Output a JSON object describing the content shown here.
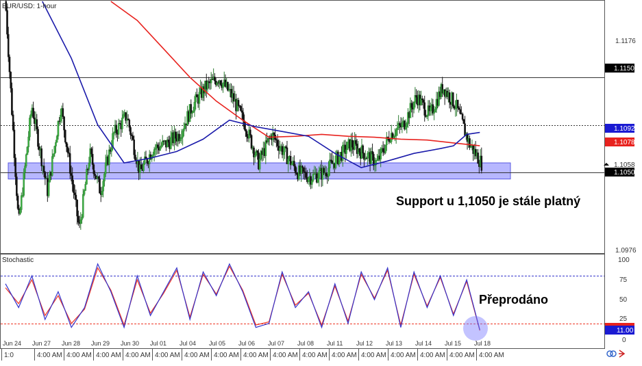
{
  "colors": {
    "bull": "#2e7d32",
    "bear": "#1b1b1b",
    "ma_fast": "#1a1aaa",
    "ma_slow": "#e8221e",
    "zone": "#7b7bff",
    "k_line": "#3333cc",
    "d_line": "#ee3322",
    "badge_black": "#000000",
    "badge_blue": "#1a1ad2",
    "badge_red": "#e8221e"
  },
  "chart_data": [
    {
      "type": "candlestick",
      "title": "EUR/USD: 1-hour",
      "ylim": [
        1.0965,
        1.123
      ],
      "y_ticks": [
        "1.1176",
        "1.0976"
      ],
      "x_date_labels": [
        "Jun 24",
        "Jun 27",
        "Jun 28",
        "Jun 29",
        "Jun 30",
        "Jul 01",
        "Jul 04",
        "Jul 05",
        "Jul 06",
        "Jul 07",
        "Jul 08",
        "Jul 11",
        "Jul 12",
        "Jul 13",
        "Jul 14",
        "Jul 15",
        "Jul 18"
      ],
      "x_time_labels": [
        "1:0",
        "4:00 AM",
        "4:00 AM",
        "4:00 AM",
        "4:00 AM",
        "4:00 AM",
        "4:00 AM",
        "4:00 AM",
        "4:00 AM",
        "4:00 AM",
        "4:00 AM",
        "4:00 AM",
        "4:00 AM",
        "4:00 AM",
        "4:00 AM",
        "4:00 AM",
        "4:00 AM"
      ],
      "price_path": [
        {
          "x": 0,
          "y": 1.123
        },
        {
          "x": 0.5,
          "y": 1.0995
        },
        {
          "x": 1,
          "y": 1.112
        },
        {
          "x": 1.6,
          "y": 1.103
        },
        {
          "x": 2.1,
          "y": 1.112
        },
        {
          "x": 2.8,
          "y": 1.099
        },
        {
          "x": 3.2,
          "y": 1.107
        },
        {
          "x": 3.6,
          "y": 1.103
        },
        {
          "x": 4.1,
          "y": 1.109
        },
        {
          "x": 4.6,
          "y": 1.111
        },
        {
          "x": 5.1,
          "y": 1.105
        },
        {
          "x": 5.6,
          "y": 1.1075
        },
        {
          "x": 6.1,
          "y": 1.108
        },
        {
          "x": 6.6,
          "y": 1.109
        },
        {
          "x": 7.1,
          "y": 1.112
        },
        {
          "x": 7.6,
          "y": 1.114
        },
        {
          "x": 8.1,
          "y": 1.115
        },
        {
          "x": 8.6,
          "y": 1.113
        },
        {
          "x": 9.1,
          "y": 1.11
        },
        {
          "x": 9.6,
          "y": 1.106
        },
        {
          "x": 10.1,
          "y": 1.109
        },
        {
          "x": 10.6,
          "y": 1.107
        },
        {
          "x": 11.1,
          "y": 1.105
        },
        {
          "x": 11.6,
          "y": 1.1045
        },
        {
          "x": 12.1,
          "y": 1.105
        },
        {
          "x": 12.6,
          "y": 1.1065
        },
        {
          "x": 13.1,
          "y": 1.108
        },
        {
          "x": 13.6,
          "y": 1.107
        },
        {
          "x": 14.1,
          "y": 1.106
        },
        {
          "x": 14.6,
          "y": 1.109
        },
        {
          "x": 15.1,
          "y": 1.11
        },
        {
          "x": 15.6,
          "y": 1.113
        },
        {
          "x": 16.1,
          "y": 1.111
        },
        {
          "x": 16.6,
          "y": 1.114
        },
        {
          "x": 17.1,
          "y": 1.112
        },
        {
          "x": 17.6,
          "y": 1.108
        },
        {
          "x": 18.1,
          "y": 1.1058
        }
      ],
      "series": [
        {
          "name": "MA fast",
          "x": [
            1.4,
            2.5,
            3.5,
            4.5,
            5.5,
            6.5,
            7.5,
            8.5,
            9.5,
            10.5,
            11.5,
            12.5,
            13.5,
            14.5,
            15.5,
            16.5,
            17.0,
            17.5,
            18.0
          ],
          "values": [
            1.123,
            1.117,
            1.11,
            1.106,
            1.1065,
            1.1072,
            1.1085,
            1.1105,
            1.1098,
            1.1093,
            1.1088,
            1.107,
            1.1055,
            1.1062,
            1.107,
            1.1075,
            1.1078,
            1.109,
            1.1092
          ]
        },
        {
          "name": "MA slow",
          "x": [
            4.0,
            5.0,
            6.0,
            7.0,
            8.0,
            9.0,
            10.0,
            11.0,
            12.0,
            13.0,
            14.0,
            15.0,
            16.0,
            17.0,
            18.0
          ],
          "values": [
            1.123,
            1.121,
            1.118,
            1.115,
            1.1125,
            1.1105,
            1.1087,
            1.1088,
            1.109,
            1.1088,
            1.1087,
            1.1085,
            1.1084,
            1.1081,
            1.1078
          ]
        }
      ],
      "horizontal_lines": [
        {
          "value": 1.115,
          "label": "1.1150",
          "style": "solid"
        },
        {
          "value": 1.1092,
          "label": "1.1092",
          "style": "badge"
        },
        {
          "value": 1.1078,
          "label": "1.1078",
          "style": "badge"
        },
        {
          "value": 1.11,
          "style": "dotted"
        },
        {
          "value": 1.105,
          "label": "1.1050",
          "style": "solid"
        }
      ],
      "price_marker": "1.1058",
      "support_zone": [
        1.1043,
        1.106
      ],
      "annotation": "Support u 1,1050 je stále platný"
    },
    {
      "type": "line",
      "title": "Stochastic",
      "ylim": [
        0,
        100
      ],
      "y_ticks": [
        "100",
        "75",
        "50",
        "25",
        "0"
      ],
      "levels": [
        80,
        20
      ],
      "current_value": "11.00",
      "annotation": "Přeprodáno",
      "x": [
        0,
        0.5,
        1,
        1.5,
        2,
        2.5,
        3,
        3.5,
        4,
        4.5,
        5,
        5.5,
        6,
        6.5,
        7,
        7.5,
        8,
        8.5,
        9,
        9.5,
        10,
        10.5,
        11,
        11.5,
        12,
        12.5,
        13,
        13.5,
        14,
        14.5,
        15,
        15.5,
        16,
        16.5,
        17,
        17.5,
        18
      ],
      "series": [
        {
          "name": "%K",
          "values": [
            70,
            40,
            80,
            25,
            60,
            15,
            40,
            95,
            60,
            15,
            80,
            30,
            60,
            90,
            25,
            85,
            55,
            95,
            60,
            15,
            20,
            85,
            40,
            60,
            15,
            70,
            20,
            85,
            50,
            90,
            15,
            85,
            40,
            80,
            30,
            75,
            12
          ]
        },
        {
          "name": "%D",
          "values": [
            65,
            45,
            75,
            30,
            55,
            20,
            38,
            90,
            62,
            18,
            75,
            33,
            58,
            87,
            28,
            82,
            57,
            92,
            62,
            18,
            22,
            82,
            43,
            58,
            18,
            67,
            23,
            82,
            52,
            87,
            18,
            82,
            42,
            78,
            32,
            73,
            11
          ]
        }
      ]
    }
  ]
}
